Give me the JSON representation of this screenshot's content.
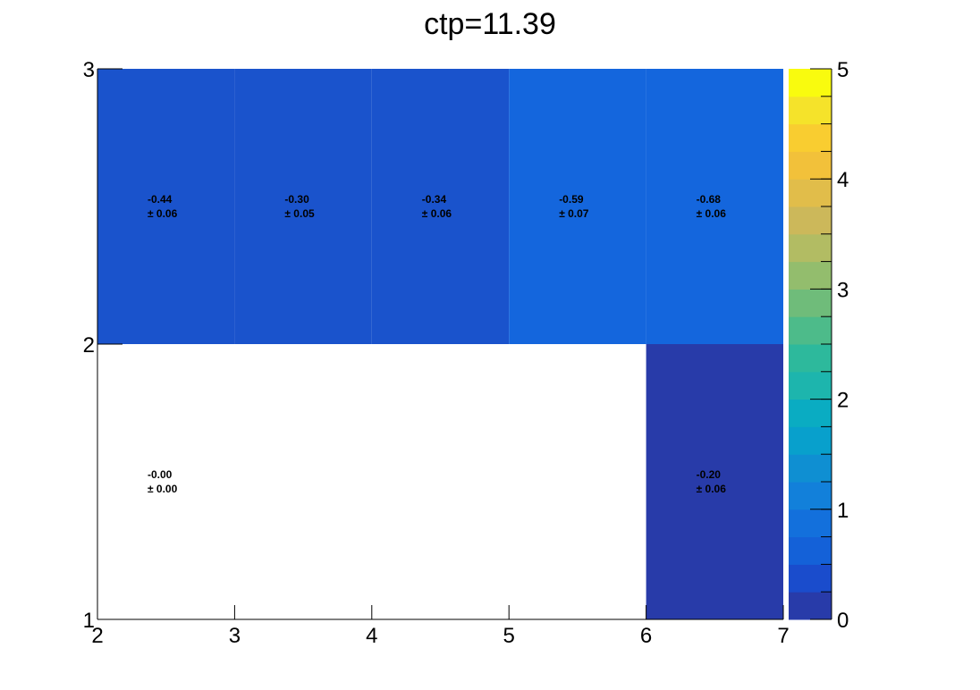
{
  "chart_data": {
    "type": "heatmap",
    "title": "ctp=11.39",
    "xlabel": "",
    "ylabel": "",
    "xlim": [
      2,
      7
    ],
    "ylim": [
      1,
      3
    ],
    "zlim": [
      0,
      5
    ],
    "x_edges": [
      2,
      3,
      4,
      5,
      6,
      7
    ],
    "y_edges": [
      1,
      2,
      3
    ],
    "x_ticks": [
      "2",
      "3",
      "4",
      "5",
      "6",
      "7"
    ],
    "y_ticks": [
      "1",
      "2",
      "3"
    ],
    "z_ticks": [
      "0",
      "1",
      "2",
      "3",
      "4",
      "5"
    ],
    "palette": [
      "#283ba9",
      "#1a4ccc",
      "#1461d8",
      "#1370dc",
      "#1280da",
      "#0f8fd2",
      "#08a0cc",
      "#0aacc2",
      "#1db5ad",
      "#2db99c",
      "#4dbb8a",
      "#6fbc7a",
      "#93bd6d",
      "#b2bc63",
      "#ccb85a",
      "#e1bd4a",
      "#f2c13a",
      "#f9cd30",
      "#f5e32a",
      "#f9fb0e"
    ],
    "cells": [
      {
        "x": 2,
        "y": 2,
        "value": -0.44,
        "text": "-0.44",
        "err_text": "± 0.06",
        "color": "#1a53cc"
      },
      {
        "x": 3,
        "y": 2,
        "value": -0.3,
        "text": "-0.30",
        "err_text": "± 0.05",
        "color": "#1a53cc"
      },
      {
        "x": 4,
        "y": 2,
        "value": -0.34,
        "text": "-0.34",
        "err_text": "± 0.06",
        "color": "#1a53cc"
      },
      {
        "x": 5,
        "y": 2,
        "value": -0.59,
        "text": "-0.59",
        "err_text": "± 0.07",
        "color": "#1466dd"
      },
      {
        "x": 6,
        "y": 2,
        "value": -0.68,
        "text": "-0.68",
        "err_text": "± 0.06",
        "color": "#1466dd"
      },
      {
        "x": 2,
        "y": 1,
        "value": -0.0,
        "text": "-0.00",
        "err_text": "± 0.00",
        "color": "#ffffff"
      },
      {
        "x": 6,
        "y": 1,
        "value": -0.2,
        "text": "-0.20",
        "err_text": "± 0.06",
        "color": "#283ba9"
      }
    ]
  }
}
